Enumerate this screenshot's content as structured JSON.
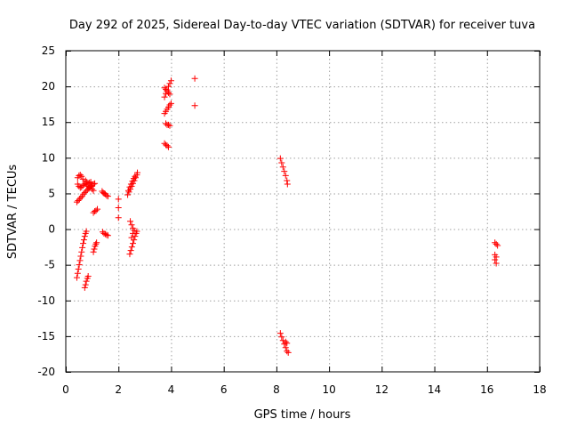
{
  "chart_data": {
    "type": "scatter",
    "title": "Day 292 of 2025, Sidereal Day-to-day VTEC variation (SDTVAR) for receiver tuva",
    "xlabel": "GPS time / hours",
    "ylabel": "SDTVAR / TECUs",
    "xlim": [
      0,
      18
    ],
    "ylim": [
      -20,
      25
    ],
    "xticks": [
      0,
      2,
      4,
      6,
      8,
      10,
      12,
      14,
      16,
      18
    ],
    "yticks": [
      -20,
      -15,
      -10,
      -5,
      0,
      5,
      10,
      15,
      20,
      25
    ],
    "grid": true,
    "marker": "+",
    "color": "#ff0000",
    "series": [
      {
        "name": "SDTVAR",
        "points": [
          [
            0.45,
            7.2
          ],
          [
            0.5,
            7.5
          ],
          [
            0.55,
            7.6
          ],
          [
            0.6,
            7.4
          ],
          [
            0.65,
            7.0
          ],
          [
            0.45,
            6.3
          ],
          [
            0.5,
            6.0
          ],
          [
            0.55,
            5.8
          ],
          [
            0.6,
            5.9
          ],
          [
            0.65,
            6.1
          ],
          [
            0.7,
            6.3
          ],
          [
            0.75,
            6.4
          ],
          [
            0.8,
            6.2
          ],
          [
            0.85,
            6.0
          ],
          [
            0.9,
            5.8
          ],
          [
            0.42,
            3.8
          ],
          [
            0.47,
            4.0
          ],
          [
            0.52,
            4.2
          ],
          [
            0.57,
            4.4
          ],
          [
            0.62,
            4.6
          ],
          [
            0.67,
            4.9
          ],
          [
            0.72,
            5.1
          ],
          [
            0.77,
            5.3
          ],
          [
            0.82,
            5.5
          ],
          [
            0.87,
            5.7
          ],
          [
            0.92,
            5.9
          ],
          [
            0.97,
            6.0
          ],
          [
            0.75,
            6.8
          ],
          [
            0.8,
            6.6
          ],
          [
            0.85,
            6.4
          ],
          [
            0.9,
            6.5
          ],
          [
            0.95,
            6.6
          ],
          [
            1.0,
            6.1
          ],
          [
            1.05,
            6.3
          ],
          [
            1.1,
            6.4
          ],
          [
            1.0,
            5.6
          ],
          [
            1.05,
            5.4
          ],
          [
            1.05,
            2.3
          ],
          [
            1.1,
            2.5
          ],
          [
            1.15,
            2.6
          ],
          [
            1.2,
            2.8
          ],
          [
            1.38,
            5.3
          ],
          [
            1.42,
            5.1
          ],
          [
            1.46,
            5.0
          ],
          [
            1.5,
            4.9
          ],
          [
            1.55,
            4.7
          ],
          [
            1.6,
            4.6
          ],
          [
            1.4,
            -0.4
          ],
          [
            1.45,
            -0.6
          ],
          [
            1.5,
            -0.7
          ],
          [
            1.55,
            -0.8
          ],
          [
            1.6,
            -0.9
          ],
          [
            0.42,
            -6.8
          ],
          [
            0.45,
            -6.2
          ],
          [
            0.48,
            -5.6
          ],
          [
            0.51,
            -5.0
          ],
          [
            0.54,
            -4.4
          ],
          [
            0.57,
            -3.8
          ],
          [
            0.6,
            -3.2
          ],
          [
            0.63,
            -2.6
          ],
          [
            0.66,
            -2.0
          ],
          [
            0.69,
            -1.5
          ],
          [
            0.72,
            -1.0
          ],
          [
            0.75,
            -0.6
          ],
          [
            0.78,
            -0.3
          ],
          [
            0.72,
            -8.2
          ],
          [
            0.75,
            -7.8
          ],
          [
            0.78,
            -7.3
          ],
          [
            0.82,
            -6.9
          ],
          [
            0.85,
            -6.6
          ],
          [
            1.05,
            -3.2
          ],
          [
            1.08,
            -2.8
          ],
          [
            1.11,
            -2.4
          ],
          [
            1.14,
            -2.1
          ],
          [
            1.17,
            -1.9
          ],
          [
            2.0,
            4.2
          ],
          [
            2.0,
            3.0
          ],
          [
            2.0,
            1.6
          ],
          [
            2.35,
            4.8
          ],
          [
            2.4,
            5.2
          ],
          [
            2.45,
            5.6
          ],
          [
            2.5,
            6.0
          ],
          [
            2.55,
            6.4
          ],
          [
            2.6,
            6.8
          ],
          [
            2.65,
            7.2
          ],
          [
            2.7,
            7.6
          ],
          [
            2.72,
            7.9
          ],
          [
            2.38,
            5.4
          ],
          [
            2.43,
            5.9
          ],
          [
            2.48,
            6.3
          ],
          [
            2.53,
            6.7
          ],
          [
            2.58,
            7.1
          ],
          [
            2.63,
            7.4
          ],
          [
            2.45,
            1.1
          ],
          [
            2.5,
            0.6
          ],
          [
            2.55,
            0.1
          ],
          [
            2.43,
            -3.5
          ],
          [
            2.47,
            -3.0
          ],
          [
            2.51,
            -2.5
          ],
          [
            2.55,
            -2.0
          ],
          [
            2.59,
            -1.5
          ],
          [
            2.63,
            -1.0
          ],
          [
            2.67,
            -0.6
          ],
          [
            2.7,
            -0.3
          ],
          [
            2.5,
            -1.2
          ],
          [
            2.55,
            -0.6
          ],
          [
            2.6,
            -0.2
          ],
          [
            3.75,
            16.2
          ],
          [
            3.8,
            16.5
          ],
          [
            3.85,
            16.8
          ],
          [
            3.9,
            17.1
          ],
          [
            3.95,
            17.4
          ],
          [
            4.0,
            17.6
          ],
          [
            3.75,
            18.5
          ],
          [
            3.8,
            19.0
          ],
          [
            3.85,
            19.5
          ],
          [
            3.9,
            20.0
          ],
          [
            3.95,
            20.4
          ],
          [
            4.0,
            20.8
          ],
          [
            3.75,
            19.8
          ],
          [
            3.8,
            19.6
          ],
          [
            3.85,
            19.3
          ],
          [
            3.9,
            19.1
          ],
          [
            3.95,
            18.9
          ],
          [
            3.8,
            14.8
          ],
          [
            3.85,
            14.6
          ],
          [
            3.9,
            14.6
          ],
          [
            3.95,
            14.5
          ],
          [
            3.75,
            12.0
          ],
          [
            3.8,
            11.8
          ],
          [
            3.85,
            11.7
          ],
          [
            3.9,
            11.5
          ],
          [
            4.9,
            21.1
          ],
          [
            4.9,
            17.3
          ],
          [
            8.15,
            9.9
          ],
          [
            8.2,
            9.3
          ],
          [
            8.25,
            8.7
          ],
          [
            8.3,
            8.1
          ],
          [
            8.35,
            7.5
          ],
          [
            8.4,
            6.8
          ],
          [
            8.42,
            6.3
          ],
          [
            8.15,
            -14.6
          ],
          [
            8.2,
            -15.1
          ],
          [
            8.25,
            -15.6
          ],
          [
            8.3,
            -16.1
          ],
          [
            8.35,
            -16.6
          ],
          [
            8.4,
            -17.1
          ],
          [
            8.45,
            -17.3
          ],
          [
            8.35,
            -15.8
          ],
          [
            8.4,
            -16.0
          ],
          [
            16.3,
            -1.9
          ],
          [
            16.35,
            -2.1
          ],
          [
            16.4,
            -2.3
          ],
          [
            16.3,
            -3.6
          ],
          [
            16.35,
            -3.9
          ],
          [
            16.3,
            -4.3
          ],
          [
            16.35,
            -4.8
          ]
        ]
      }
    ]
  }
}
